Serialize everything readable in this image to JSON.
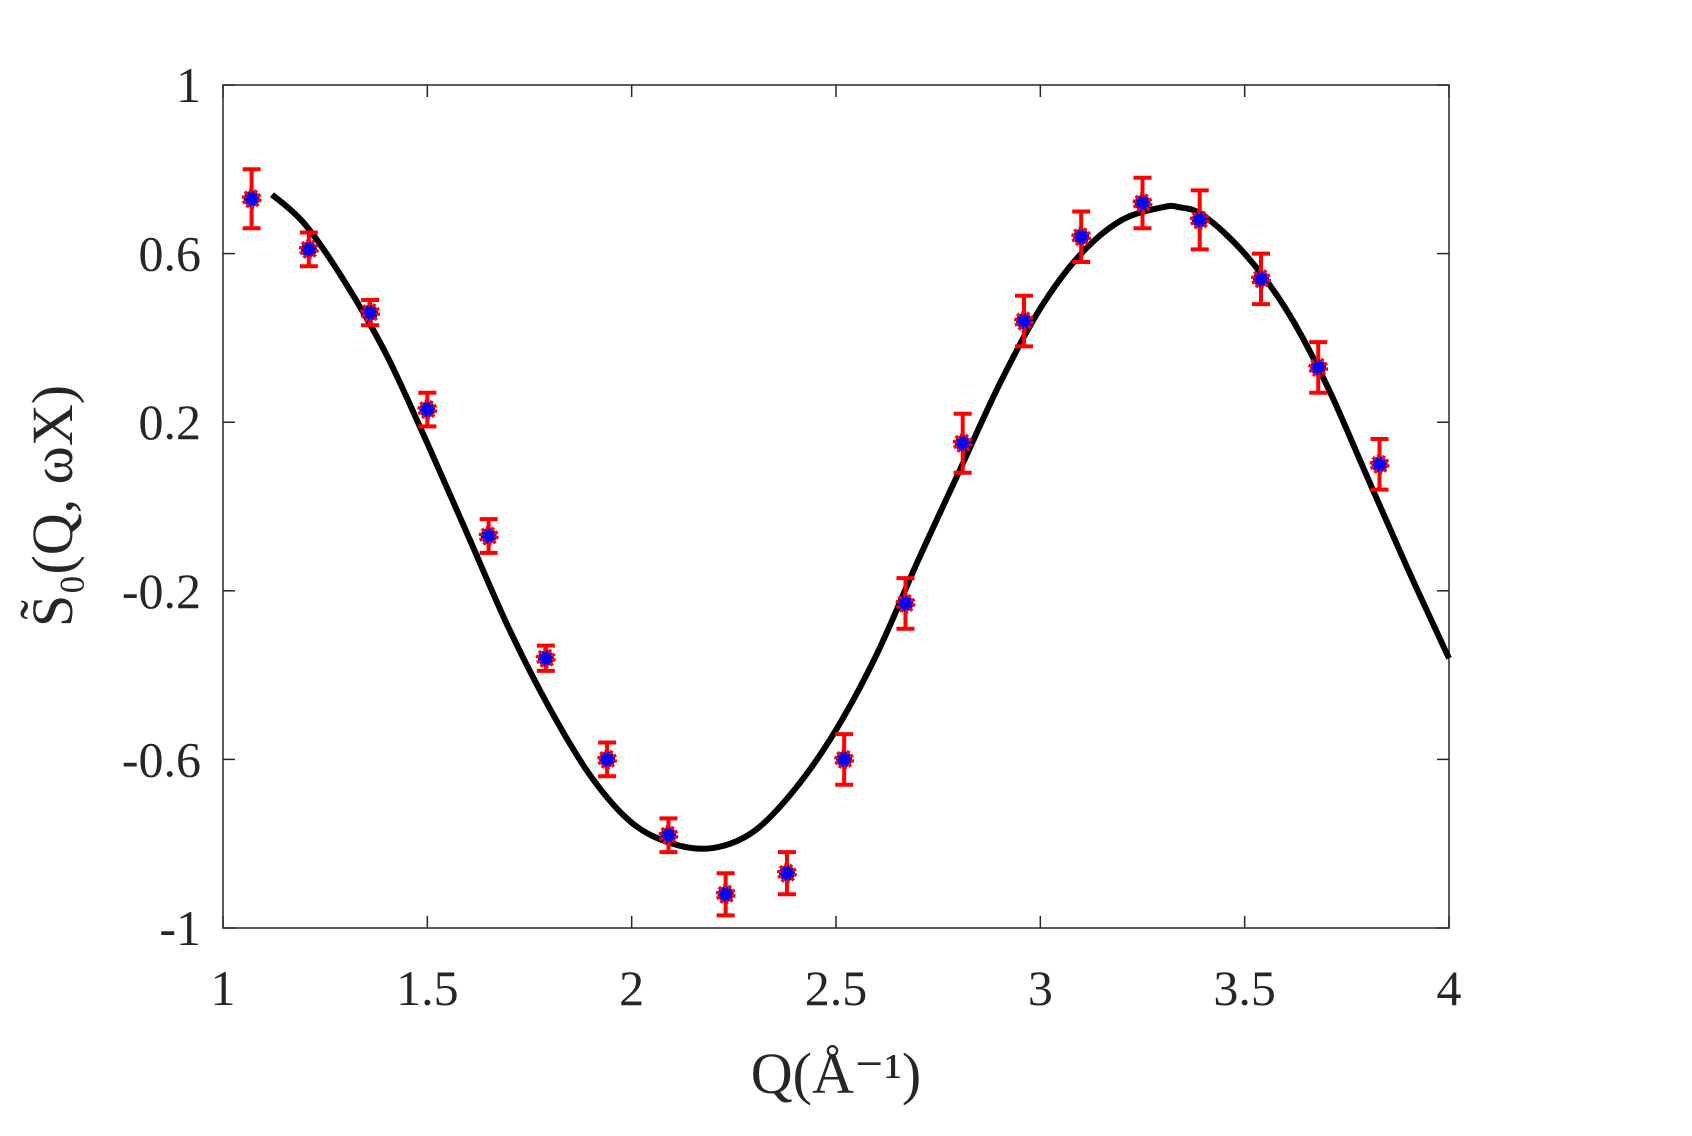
{
  "chart_data": {
    "type": "scatter",
    "xlabel": "Q(Å⁻¹)",
    "ylabel": "S̃₀(Q, ωX)",
    "xlim": [
      1,
      4
    ],
    "ylim": [
      -1,
      1
    ],
    "grid": false,
    "x_ticks": [
      "1",
      "1.5",
      "2",
      "2.5",
      "3",
      "3.5",
      "4"
    ],
    "y_ticks": [
      "1",
      "0.6",
      "0.2",
      "-0.2",
      "-0.6",
      "-1"
    ],
    "x_tick_values": [
      1,
      1.5,
      2,
      2.5,
      3,
      3.5,
      4
    ],
    "y_tick_values": [
      1,
      0.6,
      0.2,
      -0.2,
      -0.6,
      -1
    ],
    "series": [
      {
        "kind": "points_with_errorbars",
        "marker_face_color": "#0000ff",
        "marker_edge_color": "#ff0000",
        "errorbar_color": "#ff0000",
        "points": [
          {
            "x": 1.07,
            "y": 0.73,
            "err": 0.07
          },
          {
            "x": 1.21,
            "y": 0.61,
            "err": 0.04
          },
          {
            "x": 1.36,
            "y": 0.46,
            "err": 0.03
          },
          {
            "x": 1.5,
            "y": 0.23,
            "err": 0.04
          },
          {
            "x": 1.65,
            "y": -0.07,
            "err": 0.04
          },
          {
            "x": 1.79,
            "y": -0.36,
            "err": 0.03
          },
          {
            "x": 1.94,
            "y": -0.6,
            "err": 0.04
          },
          {
            "x": 2.09,
            "y": -0.78,
            "err": 0.04
          },
          {
            "x": 2.23,
            "y": -0.92,
            "err": 0.05
          },
          {
            "x": 2.38,
            "y": -0.87,
            "err": 0.05
          },
          {
            "x": 2.52,
            "y": -0.6,
            "err": 0.06
          },
          {
            "x": 2.67,
            "y": -0.23,
            "err": 0.06
          },
          {
            "x": 2.81,
            "y": 0.15,
            "err": 0.07
          },
          {
            "x": 2.96,
            "y": 0.44,
            "err": 0.06
          },
          {
            "x": 3.1,
            "y": 0.64,
            "err": 0.06
          },
          {
            "x": 3.25,
            "y": 0.72,
            "err": 0.06
          },
          {
            "x": 3.39,
            "y": 0.68,
            "err": 0.07
          },
          {
            "x": 3.54,
            "y": 0.54,
            "err": 0.06
          },
          {
            "x": 3.68,
            "y": 0.33,
            "err": 0.06
          },
          {
            "x": 3.83,
            "y": 0.1,
            "err": 0.06
          }
        ]
      },
      {
        "kind": "line",
        "color": "#000000",
        "x": [
          1.12,
          1.2,
          1.3,
          1.4,
          1.5,
          1.6,
          1.7,
          1.8,
          1.9,
          2.0,
          2.1,
          2.2,
          2.3,
          2.4,
          2.5,
          2.6,
          2.7,
          2.8,
          2.9,
          3.0,
          3.1,
          3.2,
          3.3,
          3.34,
          3.4,
          3.5,
          3.6,
          3.7,
          3.8,
          3.9,
          4.0
        ],
        "y": [
          0.74,
          0.67,
          0.53,
          0.36,
          0.15,
          -0.07,
          -0.29,
          -0.48,
          -0.64,
          -0.75,
          -0.8,
          -0.81,
          -0.77,
          -0.67,
          -0.53,
          -0.35,
          -0.13,
          0.08,
          0.29,
          0.47,
          0.6,
          0.68,
          0.71,
          0.71,
          0.69,
          0.6,
          0.47,
          0.29,
          0.07,
          -0.15,
          -0.36
        ]
      }
    ]
  }
}
